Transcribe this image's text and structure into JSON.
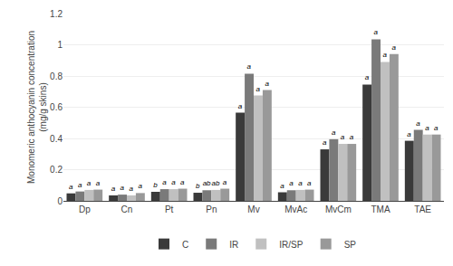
{
  "chart_data": {
    "type": "bar",
    "categories": [
      "Dp",
      "Cn",
      "Pt",
      "Pn",
      "Mv",
      "MvAc",
      "MvCm",
      "TMA",
      "TAE"
    ],
    "series": [
      {
        "name": "C",
        "color": "#3a3a3a",
        "values": [
          0.048,
          0.035,
          0.058,
          0.052,
          0.565,
          0.055,
          0.33,
          0.745,
          0.385
        ],
        "annotations": [
          "a",
          "a",
          "b",
          "b",
          "a",
          "a",
          "a",
          "a",
          "a"
        ]
      },
      {
        "name": "IR",
        "color": "#7a7a7a",
        "values": [
          0.06,
          0.04,
          0.075,
          0.068,
          0.815,
          0.068,
          0.395,
          1.035,
          0.455
        ],
        "annotations": [
          "a",
          "a",
          "a",
          "ab",
          "a",
          "a",
          "a",
          "a",
          "a"
        ]
      },
      {
        "name": "IR/SP",
        "color": "#c0c0c0",
        "values": [
          0.07,
          0.035,
          0.075,
          0.07,
          0.675,
          0.07,
          0.365,
          0.89,
          0.425
        ],
        "annotations": [
          "a",
          "a",
          "a",
          "ab",
          "a",
          "a",
          "a",
          "a",
          "a"
        ]
      },
      {
        "name": "SP",
        "color": "#999999",
        "values": [
          0.072,
          0.05,
          0.078,
          0.078,
          0.71,
          0.072,
          0.365,
          0.94,
          0.425
        ],
        "annotations": [
          "a",
          "a",
          "a",
          "a",
          "a",
          "a",
          "a",
          "a",
          "a"
        ]
      }
    ],
    "ylabel": "Monomeric anthocyanin concentration\n(mg/g skins)",
    "ylim": [
      0,
      1.2
    ],
    "yticks": [
      0,
      0.2,
      0.4,
      0.6,
      0.8,
      1,
      1.2
    ],
    "grid": true,
    "legend": "bottom"
  }
}
